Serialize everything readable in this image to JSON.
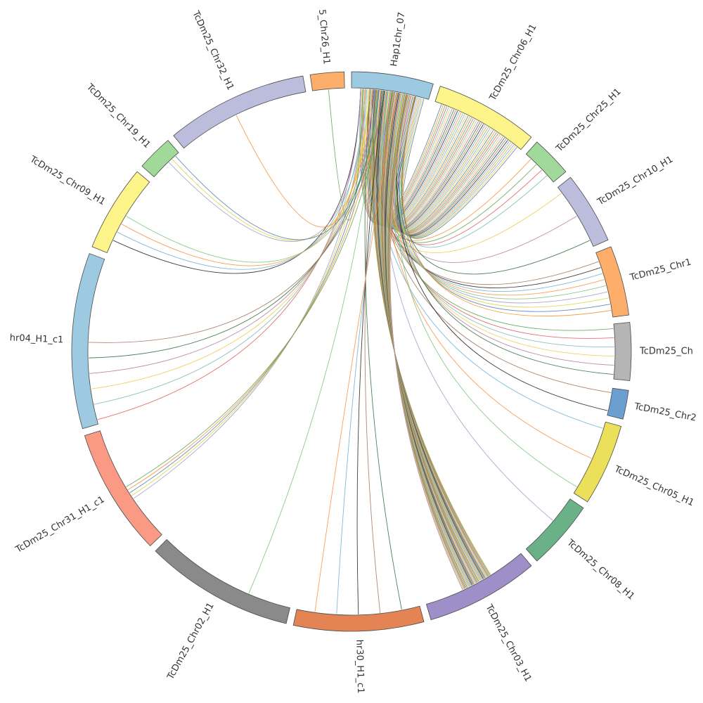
{
  "diagram": {
    "type": "circos",
    "chromosomes": [
      {
        "id": "hap7",
        "label": "Hap1chr_07",
        "color": "#9ecae1",
        "start": -90.0,
        "end": -73.0
      },
      {
        "id": "chr06",
        "label": "TcDm25_Chr06_H1",
        "color": "#fdf48a",
        "start": -71.5,
        "end": -50.0
      },
      {
        "id": "chr25",
        "label": "TcDm25_Chr25_H1",
        "color": "#a1d99b",
        "start": -48.5,
        "end": -40.0
      },
      {
        "id": "chr10",
        "label": "TcDm25_Chr10_H1",
        "color": "#bcbddc",
        "start": -38.5,
        "end": -23.5
      },
      {
        "id": "chr1x",
        "label": "TcDm25_Chr1",
        "color": "#fdae6b",
        "start": -22.0,
        "end": -7.5
      },
      {
        "id": "chrG",
        "label": "TcDm25_Ch",
        "color": "#b5b5b5",
        "start": -6.0,
        "end": 6.0
      },
      {
        "id": "chr2x",
        "label": "TcDm25_Chr2",
        "color": "#6a9fd0",
        "start": 8.0,
        "end": 14.0
      },
      {
        "id": "chr05",
        "label": "TcDm25_Chr05_H1",
        "color": "#ece05b",
        "start": 15.5,
        "end": 32.5
      },
      {
        "id": "chr08",
        "label": "TcDm25_Chr08_H1",
        "color": "#6ab187",
        "start": 34.0,
        "end": 48.5
      },
      {
        "id": "chr03",
        "label": "TcDm25_Chr03_H1",
        "color": "#9e8fc8",
        "start": 50.0,
        "end": 73.5
      },
      {
        "id": "chr30",
        "label": "hr30_H1_c1",
        "color": "#e48454",
        "start": 75.0,
        "end": 102.0
      },
      {
        "id": "chr02",
        "label": "TcDm25_Chr02_H1",
        "color": "#8a8a8a",
        "start": 103.5,
        "end": 134.5
      },
      {
        "id": "chr31",
        "label": "TcDm25_Chr31_H1_c1",
        "color": "#fb9a84",
        "start": 136.0,
        "end": 162.5
      },
      {
        "id": "chr04",
        "label": "hr04_H1_c1",
        "color": "#9ecae1",
        "start": 164.0,
        "end": 200.5
      },
      {
        "id": "chr09",
        "label": "TcDm25_Chr09_H1",
        "color": "#fdf48a",
        "start": 202.0,
        "end": 220.0
      },
      {
        "id": "chr19",
        "label": "TcDm25_Chr19_H1",
        "color": "#a1d99b",
        "start": 221.5,
        "end": 229.0
      },
      {
        "id": "chr32",
        "label": "TcDm25_Chr32_H1",
        "color": "#bcbddc",
        "start": 230.5,
        "end": 260.0
      },
      {
        "id": "chr26",
        "label": "5_Chr26_H1",
        "color": "#fdae6b",
        "start": 261.5,
        "end": 268.5
      }
    ],
    "link_colors": [
      "#4e79a7",
      "#f28e2b",
      "#59a14f",
      "#e15759",
      "#76b7b2",
      "#edc948",
      "#b07aa1",
      "#2f6b3a",
      "#9c755f",
      "#1f1f1f",
      "#6baed6",
      "#fd8d3c",
      "#74c476",
      "#9e9ac8",
      "#d9d23a"
    ],
    "links": [
      {
        "from": [
          -88,
          -74
        ],
        "to": [
          -70,
          -51
        ],
        "count": 46
      },
      {
        "from": [
          -86,
          -76
        ],
        "to": [
          -47,
          -42
        ],
        "count": 4
      },
      {
        "from": [
          -86,
          -76
        ],
        "to": [
          -37,
          -25
        ],
        "count": 3
      },
      {
        "from": [
          -86,
          -76
        ],
        "to": [
          -20,
          -9
        ],
        "count": 9
      },
      {
        "from": [
          -85,
          -78
        ],
        "to": [
          -5,
          5
        ],
        "count": 6
      },
      {
        "from": [
          -84,
          -78
        ],
        "to": [
          9,
          13
        ],
        "count": 2
      },
      {
        "from": [
          -85,
          -78
        ],
        "to": [
          17,
          31
        ],
        "count": 3
      },
      {
        "from": [
          -85,
          -79
        ],
        "to": [
          36,
          44
        ],
        "count": 1
      },
      {
        "from": [
          -85,
          -77
        ],
        "to": [
          58,
          65
        ],
        "count": 38
      },
      {
        "from": [
          -86,
          -80
        ],
        "to": [
          79,
          98
        ],
        "count": 5
      },
      {
        "from": [
          -86,
          -82
        ],
        "to": [
          112,
          114
        ],
        "count": 1
      },
      {
        "from": [
          -87,
          -83
        ],
        "to": [
          146,
          149
        ],
        "count": 5
      },
      {
        "from": [
          -88,
          -83
        ],
        "to": [
          165,
          182
        ],
        "count": 6
      },
      {
        "from": [
          -88,
          -84
        ],
        "to": [
          205,
          211
        ],
        "count": 4
      },
      {
        "from": [
          -88,
          -84
        ],
        "to": [
          226,
          228
        ],
        "count": 3
      },
      {
        "from": [
          -89,
          -85
        ],
        "to": [
          243,
          245
        ],
        "count": 1
      },
      {
        "from": [
          -89,
          -86
        ],
        "to": [
          264,
          266
        ],
        "count": 1
      }
    ]
  }
}
